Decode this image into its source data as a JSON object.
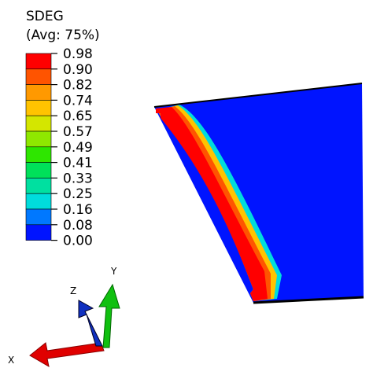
{
  "legend": {
    "title": "SDEG",
    "subtitle": "(Avg: 75%)",
    "labels": [
      "0.98",
      "0.90",
      "0.82",
      "0.74",
      "0.65",
      "0.57",
      "0.49",
      "0.41",
      "0.33",
      "0.25",
      "0.16",
      "0.08",
      "0.00"
    ],
    "colors": [
      "#ff0000",
      "#ff5400",
      "#ff9900",
      "#ffc300",
      "#d4e600",
      "#8fe800",
      "#2ee600",
      "#00e05a",
      "#00e0a0",
      "#00dcdc",
      "#0078ff",
      "#0014ff"
    ]
  },
  "triad": {
    "x": "X",
    "y": "Y",
    "z": "Z"
  }
}
